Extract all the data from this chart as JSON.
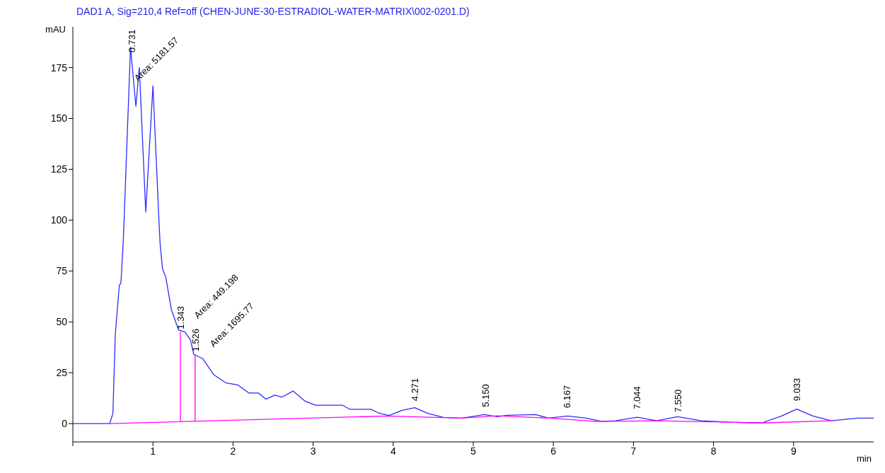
{
  "chart_data": {
    "type": "line",
    "title": "DAD1 A, Sig=210,4 Ref=off (CHEN-JUNE-30-ESTRADIOL-WATER-MATRIX\\002-0201.D)",
    "xlabel": "min",
    "ylabel": "mAU",
    "xlim": [
      0,
      10
    ],
    "xticks": [
      {
        "value": 0,
        "label": null
      },
      1,
      2,
      3,
      4,
      5,
      6,
      7,
      8,
      9
    ],
    "ylim": [
      -9,
      195
    ],
    "yticks": [
      0,
      25,
      50,
      75,
      100,
      125,
      150,
      175
    ],
    "grid": false,
    "marker": "none",
    "line_style": "solid",
    "series": [
      {
        "color": "#2b2bff",
        "x": [
          0,
          0.46,
          0.5,
          0.53,
          0.58,
          0.6,
          0.63,
          0.72,
          0.787,
          0.83,
          0.91,
          1.0,
          1.076,
          1.09,
          1.12,
          1.16,
          1.23,
          1.32,
          1.4,
          1.47,
          1.51,
          1.62,
          1.76,
          1.91,
          2.06,
          2.2,
          2.32,
          2.41,
          2.52,
          2.61,
          2.75,
          2.9,
          3.03,
          3.37,
          3.46,
          3.72,
          3.83,
          3.95,
          4.11,
          4.27,
          4.43,
          4.63,
          4.86,
          5.14,
          5.3,
          5.42,
          5.78,
          5.94,
          6.18,
          6.41,
          6.61,
          6.77,
          7.05,
          7.29,
          7.55,
          7.85,
          8.2,
          8.6,
          8.85,
          9.04,
          9.24,
          9.47,
          9.8,
          10.0
        ],
        "values": [
          0,
          0,
          5,
          44,
          68,
          69,
          90,
          185,
          156,
          175,
          104,
          166,
          99,
          88,
          76,
          72,
          56,
          46,
          45,
          41,
          34,
          32,
          24,
          20,
          19,
          15,
          15,
          12,
          14,
          13,
          16,
          11,
          9,
          9,
          7,
          7,
          5,
          4,
          6.5,
          7.8,
          5,
          3,
          2.7,
          4.4,
          3.4,
          4.1,
          4.4,
          2.7,
          3.7,
          2.7,
          1,
          1.4,
          3.1,
          1.4,
          3.4,
          1.4,
          0.7,
          0.3,
          3.7,
          7.1,
          3.7,
          1.4,
          2.7,
          2.7
        ]
      },
      {
        "color": "#ff00ff",
        "x": [
          0.46,
          3.92,
          4.86,
          5.3,
          5.94,
          6.55,
          7.29,
          8.18,
          8.6,
          9.47
        ],
        "values": [
          0,
          3.7,
          2.7,
          3.8,
          2.7,
          1,
          1.4,
          0.7,
          0.3,
          1.4
        ]
      },
      {
        "color": "#ff00ff",
        "x": [
          1.343,
          1.343
        ],
        "values": [
          1.1,
          45
        ]
      },
      {
        "color": "#ff00ff",
        "x": [
          1.526,
          1.526
        ],
        "values": [
          1.3,
          34
        ]
      }
    ],
    "annotations": [
      {
        "text": "0.731",
        "x": 0.731,
        "y": 181
      },
      {
        "text": "Area: 5181.57",
        "x": 0.79,
        "y": 167
      },
      {
        "text": "1.343",
        "x": 1.343,
        "y": 45
      },
      {
        "text": "Area: 449.198",
        "x": 1.4,
        "y": 45
      },
      {
        "text": "1.526",
        "x": 1.526,
        "y": 34
      },
      {
        "text": "Area: 1695.77",
        "x": 1.62,
        "y": 32
      },
      {
        "text": "4.271",
        "x": 4.271,
        "y": 9
      },
      {
        "text": "5.150",
        "x": 5.15,
        "y": 6
      },
      {
        "text": "6.167",
        "x": 6.167,
        "y": 5.5
      },
      {
        "text": "7.044",
        "x": 7.044,
        "y": 5
      },
      {
        "text": "7.550",
        "x": 7.55,
        "y": 3.4
      },
      {
        "text": "9.033",
        "x": 9.033,
        "y": 9
      }
    ]
  }
}
